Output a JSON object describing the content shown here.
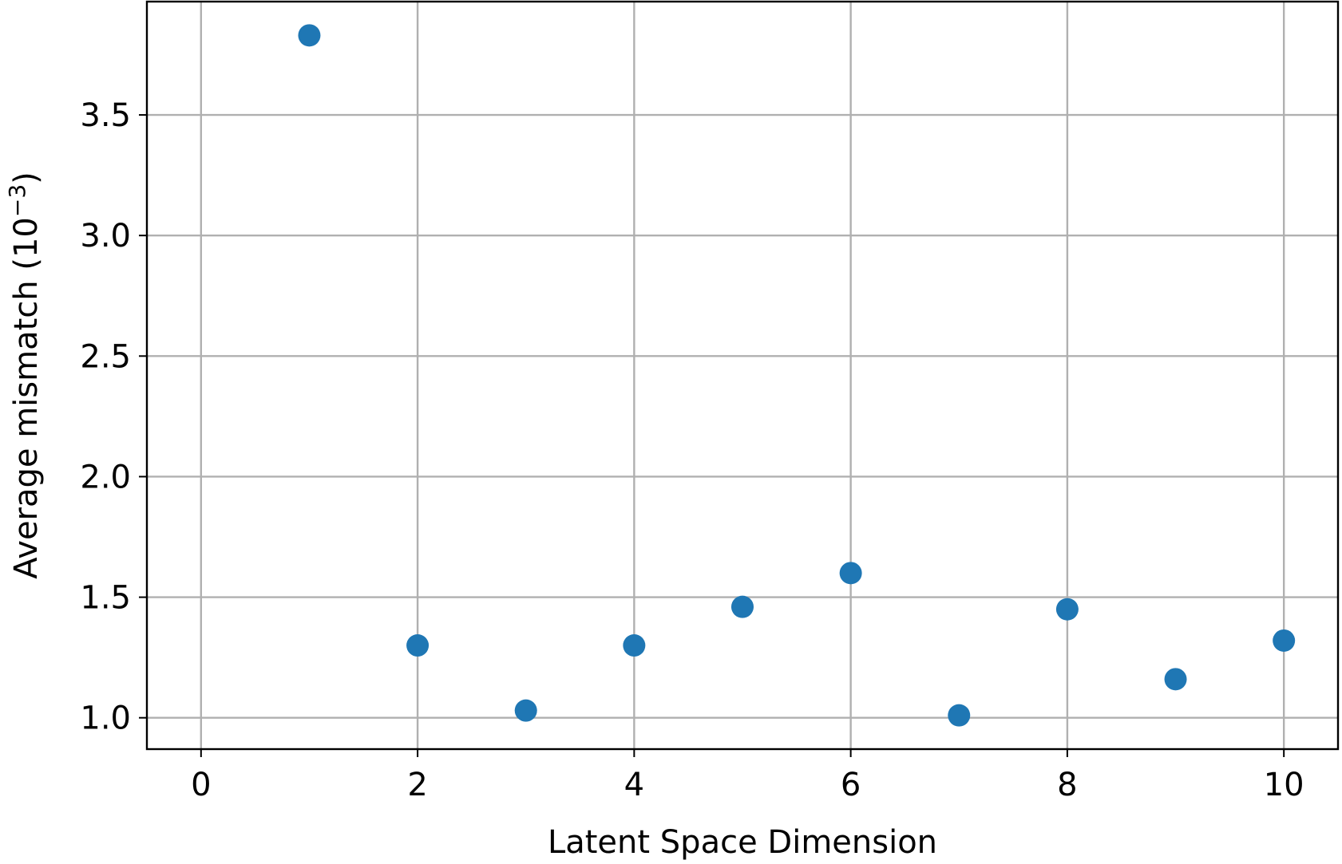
{
  "chart_data": {
    "type": "scatter",
    "title": "",
    "xlabel": "Latent Space Dimension",
    "ylabel_main": "Average mismatch (10",
    "ylabel_sup": "−3",
    "ylabel_end": ")",
    "xlim": [
      -0.5,
      10.5
    ],
    "ylim": [
      0.87,
      3.97
    ],
    "x_ticks": [
      0,
      2,
      4,
      6,
      8,
      10
    ],
    "x_tick_labels": [
      "0",
      "2",
      "4",
      "6",
      "8",
      "10"
    ],
    "y_ticks": [
      1.0,
      1.5,
      2.0,
      2.5,
      3.0,
      3.5
    ],
    "y_tick_labels": [
      "1.0",
      "1.5",
      "2.0",
      "2.5",
      "3.0",
      "3.5"
    ],
    "grid": true,
    "series": [
      {
        "color": "#1f77b4",
        "x": [
          1,
          2,
          3,
          4,
          5,
          6,
          7,
          8,
          9,
          10
        ],
        "y": [
          3.83,
          1.3,
          1.03,
          1.3,
          1.46,
          1.6,
          1.01,
          1.45,
          1.16,
          1.32
        ]
      }
    ]
  }
}
